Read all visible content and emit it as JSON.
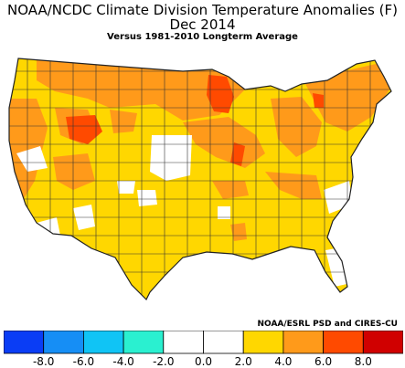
{
  "title": {
    "line1": "NOAA/NCDC Climate Division Temperature Anomalies (F)",
    "line2": "Dec 2014",
    "line3": "Versus 1981-2010 Longterm Average"
  },
  "credit": "NOAA/ESRL PSD and CIRES-CU",
  "legend": {
    "bins": [
      {
        "from": -10,
        "to": -8,
        "color": "#0a3df5"
      },
      {
        "from": -8,
        "to": -6,
        "color": "#168ef5"
      },
      {
        "from": -6,
        "to": -4,
        "color": "#10c4f5"
      },
      {
        "from": -4,
        "to": -2,
        "color": "#2af0d0"
      },
      {
        "from": -2,
        "to": 0,
        "color": "#ffffff"
      },
      {
        "from": 0,
        "to": 2,
        "color": "#ffffff"
      },
      {
        "from": 2,
        "to": 4,
        "color": "#ffd700"
      },
      {
        "from": 4,
        "to": 6,
        "color": "#ff9a1a"
      },
      {
        "from": 6,
        "to": 8,
        "color": "#ff4a00"
      },
      {
        "from": 8,
        "to": 10,
        "color": "#d00000"
      }
    ],
    "ticks": [
      "-8.0",
      "-6.0",
      "-4.0",
      "-2.0",
      "0.0",
      "2.0",
      "4.0",
      "6.0",
      "8.0"
    ]
  },
  "map": {
    "type": "choropleth",
    "region": "Contiguous United States climate divisions",
    "colors": {
      "white": "#ffffff",
      "yellow": "#ffd700",
      "orange": "#ff9a1a",
      "red_orange": "#ff4a00",
      "border": "#333333"
    }
  }
}
